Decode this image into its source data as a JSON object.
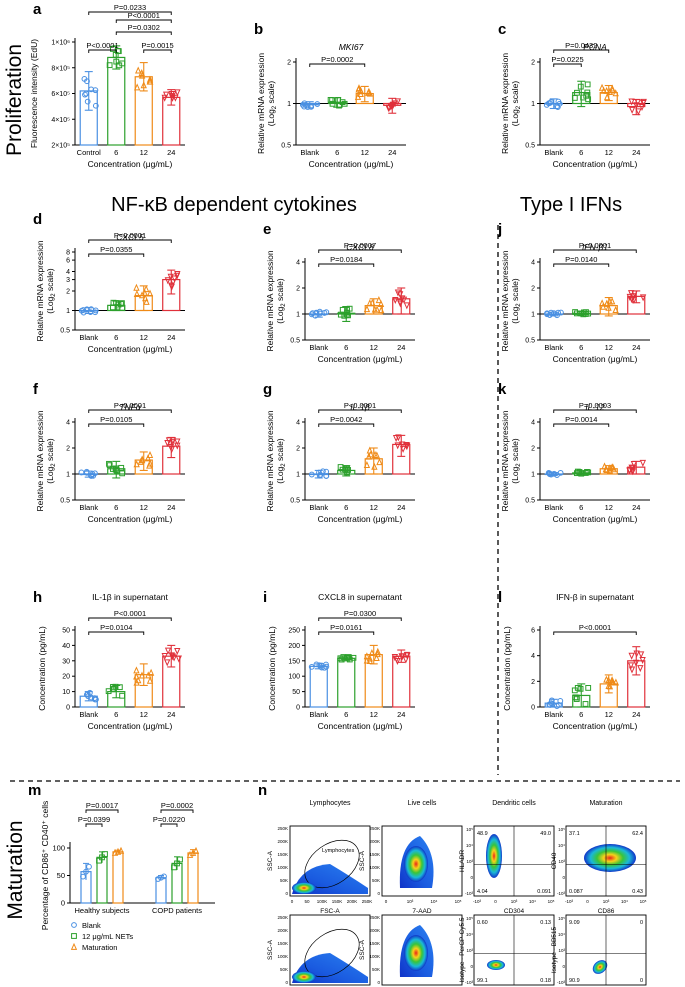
{
  "colors": {
    "blank": "#4a90e2",
    "c6": "#2ca02c",
    "c12": "#ef8a17",
    "c24": "#e0303a",
    "dash": "#000000"
  },
  "sections": {
    "proliferation": "Proliferation",
    "maturation": "Maturation",
    "nfkb": "NF-κB dependent cytokines",
    "ifn": "Type I IFNs"
  },
  "common": {
    "x_categories": [
      "Blank",
      "6",
      "12",
      "24"
    ],
    "x_label": "Concentration (μg/mL)",
    "y_rel_line1": "Relative mRNA expression",
    "y_rel_line2": "(Log",
    "y_rel_sub": "2",
    "y_rel_tail": " scale)"
  },
  "chart_data": [
    {
      "id": "a",
      "type": "bar",
      "title": "",
      "categories": [
        "Control",
        "6",
        "12",
        "24"
      ],
      "values": [
        620000,
        880000,
        730000,
        570000
      ],
      "errors": [
        150000,
        90000,
        110000,
        60000
      ],
      "ylabel": "Fluorescence intensity (EdU)",
      "xlabel": "Concentration (μg/mL)",
      "ylim": [
        200000,
        1000000
      ],
      "yticks": [
        200000,
        400000,
        600000,
        800000,
        1000000
      ],
      "yticklabels": [
        "2×10⁵",
        "4×10⁵",
        "6×10⁵",
        "8×10⁵",
        "1×10⁶"
      ],
      "comparisons": [
        {
          "from": 0,
          "to": 1,
          "label": "P<0.0001"
        },
        {
          "from": 2,
          "to": 3,
          "label": "P=0.0015"
        },
        {
          "from": 1,
          "to": 3,
          "label": "P=0.0302"
        },
        {
          "from": 0,
          "to": 3,
          "label": "P=0.0233"
        },
        {
          "from": 1,
          "to": 3,
          "label": "P<0.0001"
        }
      ]
    },
    {
      "id": "b",
      "type": "bar",
      "title": "MKI67",
      "categories": [
        "Blank",
        "6",
        "12",
        "24"
      ],
      "values": [
        0.98,
        1.02,
        1.18,
        0.97
      ],
      "errors": [
        0.05,
        0.08,
        0.15,
        0.12
      ],
      "ylabel": "Relative mRNA expression (Log2 scale)",
      "xlabel": "Concentration (μg/mL)",
      "ylim": [
        0.5,
        2
      ],
      "yticks": [
        0.5,
        1,
        2
      ],
      "yticklabels": [
        "0.5",
        "1",
        "2"
      ],
      "comparisons": [
        {
          "from": 0,
          "to": 2,
          "label": "P=0.0002"
        }
      ]
    },
    {
      "id": "c",
      "type": "bar",
      "title": "PCNA",
      "categories": [
        "Blank",
        "6",
        "12",
        "24"
      ],
      "values": [
        1.0,
        1.2,
        1.2,
        0.95
      ],
      "errors": [
        0.08,
        0.25,
        0.15,
        0.12
      ],
      "ylabel": "Relative mRNA expression (Log2 scale)",
      "xlabel": "Concentration (μg/mL)",
      "ylim": [
        0.5,
        2
      ],
      "yticks": [
        0.5,
        1,
        2
      ],
      "yticklabels": [
        "0.5",
        "1",
        "2"
      ],
      "comparisons": [
        {
          "from": 0,
          "to": 1,
          "label": "P=0.0225"
        },
        {
          "from": 0,
          "to": 2,
          "label": "P=0.0432"
        }
      ]
    },
    {
      "id": "d",
      "type": "bar",
      "title": "CXCL5",
      "categories": [
        "Blank",
        "6",
        "12",
        "24"
      ],
      "values": [
        1.0,
        1.2,
        1.7,
        3.0
      ],
      "errors": [
        0.1,
        0.2,
        0.7,
        1.2
      ],
      "ylabel": "Relative mRNA expression (Log2 scale)",
      "xlabel": "Concentration (μg/mL)",
      "ylim": [
        0.5,
        8
      ],
      "yticks": [
        0.5,
        1,
        2,
        3,
        4,
        6,
        8
      ],
      "yticklabels": [
        "0.5",
        "1",
        "2",
        "3",
        "4",
        "6",
        "8"
      ],
      "comparisons": [
        {
          "from": 0,
          "to": 2,
          "label": "P=0.0355"
        },
        {
          "from": 0,
          "to": 3,
          "label": "P<0.0001"
        }
      ]
    },
    {
      "id": "e",
      "type": "bar",
      "title": "CXCL8",
      "categories": [
        "Blank",
        "6",
        "12",
        "24"
      ],
      "values": [
        1.0,
        1.02,
        1.25,
        1.5
      ],
      "errors": [
        0.08,
        0.2,
        0.25,
        0.5
      ],
      "ylabel": "Relative mRNA expression (Log2 scale)",
      "xlabel": "Concentration (μg/mL)",
      "ylim": [
        0.5,
        4
      ],
      "yticks": [
        0.5,
        1,
        2,
        4
      ],
      "yticklabels": [
        "0.5",
        "1",
        "2",
        "4"
      ],
      "comparisons": [
        {
          "from": 0,
          "to": 2,
          "label": "P=0.0184"
        },
        {
          "from": 0,
          "to": 3,
          "label": "P=0.0007"
        }
      ]
    },
    {
      "id": "j",
      "type": "bar",
      "title": "IFN-β1",
      "categories": [
        "Blank",
        "6",
        "12",
        "24"
      ],
      "values": [
        1.0,
        1.02,
        1.25,
        1.6
      ],
      "errors": [
        0.05,
        0.05,
        0.3,
        0.25
      ],
      "ylabel": "Relative mRNA expression (Log2 scale)",
      "xlabel": "Concentration (μg/mL)",
      "ylim": [
        0.5,
        4
      ],
      "yticks": [
        0.5,
        1,
        2,
        4
      ],
      "yticklabels": [
        "0.5",
        "1",
        "2",
        "4"
      ],
      "comparisons": [
        {
          "from": 0,
          "to": 2,
          "label": "P=0.0140"
        },
        {
          "from": 0,
          "to": 3,
          "label": "P<0.0001"
        }
      ]
    },
    {
      "id": "f",
      "type": "bar",
      "title": "TNFα",
      "categories": [
        "Blank",
        "6",
        "12",
        "24"
      ],
      "values": [
        1.0,
        1.15,
        1.45,
        2.1
      ],
      "errors": [
        0.08,
        0.25,
        0.35,
        0.55
      ],
      "ylabel": "Relative mRNA expression (Log2 scale)",
      "xlabel": "Concentration (μg/mL)",
      "ylim": [
        0.5,
        4
      ],
      "yticks": [
        0.5,
        1,
        2,
        4
      ],
      "yticklabels": [
        "0.5",
        "1",
        "2",
        "4"
      ],
      "comparisons": [
        {
          "from": 0,
          "to": 2,
          "label": "P=0.0105"
        },
        {
          "from": 0,
          "to": 3,
          "label": "P<0.0001"
        }
      ]
    },
    {
      "id": "g",
      "type": "bar",
      "title": "IL-1β",
      "categories": [
        "Blank",
        "6",
        "12",
        "24"
      ],
      "values": [
        1.0,
        1.1,
        1.5,
        2.2
      ],
      "errors": [
        0.1,
        0.15,
        0.5,
        0.6
      ],
      "ylabel": "Relative mRNA expression (Log2 scale)",
      "xlabel": "Concentration (μg/mL)",
      "ylim": [
        0.5,
        4
      ],
      "yticks": [
        0.5,
        1,
        2,
        4
      ],
      "yticklabels": [
        "0.5",
        "1",
        "2",
        "4"
      ],
      "comparisons": [
        {
          "from": 0,
          "to": 2,
          "label": "P=0.0042"
        },
        {
          "from": 0,
          "to": 3,
          "label": "P<0.0001"
        }
      ]
    },
    {
      "id": "k",
      "type": "bar",
      "title": "IL-12",
      "categories": [
        "Blank",
        "6",
        "12",
        "24"
      ],
      "values": [
        1.0,
        1.03,
        1.15,
        1.2
      ],
      "errors": [
        0.04,
        0.06,
        0.1,
        0.2
      ],
      "ylabel": "Relative mRNA expression (Log2 scale)",
      "xlabel": "Concentration (μg/mL)",
      "ylim": [
        0.5,
        4
      ],
      "yticks": [
        0.5,
        1,
        2,
        4
      ],
      "yticklabels": [
        "0.5",
        "1",
        "2",
        "4"
      ],
      "comparisons": [
        {
          "from": 0,
          "to": 2,
          "label": "P=0.0014"
        },
        {
          "from": 0,
          "to": 3,
          "label": "P=0.0003"
        }
      ]
    },
    {
      "id": "h",
      "type": "bar",
      "title": "IL-1β in supernatant",
      "categories": [
        "Blank",
        "6",
        "12",
        "24"
      ],
      "values": [
        7,
        10,
        21,
        33
      ],
      "errors": [
        3,
        4,
        7,
        7
      ],
      "ylabel": "Concentration (pg/mL)",
      "xlabel": "Concentration (μg/mL)",
      "ylim": [
        0,
        50
      ],
      "yticks": [
        0,
        10,
        20,
        30,
        40,
        50
      ],
      "yticklabels": [
        "0",
        "10",
        "20",
        "30",
        "40",
        "50"
      ],
      "comparisons": [
        {
          "from": 0,
          "to": 2,
          "label": "P=0.0104"
        },
        {
          "from": 0,
          "to": 3,
          "label": "P<0.0001"
        }
      ]
    },
    {
      "id": "i",
      "type": "bar",
      "title": "CXCL8 in supernatant",
      "categories": [
        "Blank",
        "6",
        "12",
        "24"
      ],
      "values": [
        132,
        158,
        170,
        165
      ],
      "errors": [
        8,
        8,
        30,
        20
      ],
      "ylabel": "Concentration (pg/mL)",
      "xlabel": "Concentration (μg/mL)",
      "ylim": [
        0,
        250
      ],
      "yticks": [
        0,
        50,
        100,
        150,
        200,
        250
      ],
      "yticklabels": [
        "0",
        "50",
        "100",
        "150",
        "200",
        "250"
      ],
      "comparisons": [
        {
          "from": 0,
          "to": 2,
          "label": "P=0.0161"
        },
        {
          "from": 0,
          "to": 3,
          "label": "P=0.0300"
        }
      ]
    },
    {
      "id": "l",
      "type": "bar",
      "title": "IFN-β in supernatant",
      "categories": [
        "Blank",
        "6",
        "12",
        "24"
      ],
      "values": [
        0.3,
        0.9,
        1.8,
        3.6
      ],
      "errors": [
        0.3,
        0.9,
        0.7,
        1.1
      ],
      "ylabel": "Concentration (pg/mL)",
      "xlabel": "Concentration (μg/mL)",
      "ylim": [
        0,
        6
      ],
      "yticks": [
        0,
        2,
        4,
        6
      ],
      "yticklabels": [
        "0",
        "2",
        "4",
        "6"
      ],
      "comparisons": [
        {
          "from": 0,
          "to": 3,
          "label": "P<0.0001"
        }
      ]
    },
    {
      "id": "m",
      "type": "bar",
      "title": "",
      "groups": [
        "Healthy subjects",
        "COPD patients"
      ],
      "series": [
        {
          "name": "Blank",
          "values": [
            57,
            46
          ]
        },
        {
          "name": "12 μg/mL NETs",
          "values": [
            83,
            72
          ]
        },
        {
          "name": "Maturation",
          "values": [
            93,
            91
          ]
        }
      ],
      "errors": [
        [
          15,
          4
        ],
        [
          10,
          12
        ],
        [
          3,
          6
        ]
      ],
      "ylabel": "Percentage of CD86⁺ CD40⁺ cells",
      "ylim": [
        0,
        100
      ],
      "yticks": [
        0,
        50,
        100
      ],
      "yticklabels": [
        "0",
        "50",
        "100"
      ],
      "comparisons": [
        {
          "group": 0,
          "from": 0,
          "to": 1,
          "label": "P=0.0399"
        },
        {
          "group": 0,
          "from": 0,
          "to": 2,
          "label": "P=0.0017"
        },
        {
          "group": 1,
          "from": 0,
          "to": 1,
          "label": "P=0.0220"
        },
        {
          "group": 1,
          "from": 0,
          "to": 2,
          "label": "P=0.0002"
        }
      ]
    }
  ],
  "flow": {
    "titles": [
      "Lymphocytes",
      "Live cells",
      "Dendritic cells",
      "Maturation"
    ],
    "gate_label": "Lymphocytes",
    "row1": [
      {
        "ylabel": "SSC-A",
        "xlabel": "FSC-A"
      },
      {
        "ylabel": "SSC-A",
        "xlabel": "7-AAD"
      },
      {
        "ylabel": "HLADR",
        "xlabel": "CD304",
        "q": [
          "48.9",
          "49.0",
          "4.04",
          "0.091"
        ]
      },
      {
        "ylabel": "CD40",
        "xlabel": "CD86",
        "q": [
          "37.1",
          "62.4",
          "0.087",
          "0.43"
        ]
      }
    ],
    "row2": [
      {
        "ylabel": "SSC-A",
        "xlabel": "FSC-A"
      },
      {
        "ylabel": "SSC-A",
        "xlabel": "7-AAD"
      },
      {
        "ylabel": "Isotype - PerCP-Cy5.5",
        "xlabel": "Isotype - Alexa Fluor 647",
        "q": [
          "0.60",
          "0.13",
          "99.1",
          "0.18"
        ]
      },
      {
        "ylabel": "Isotype - BB515",
        "xlabel": "Isotype - PE",
        "q": [
          "9.09",
          "0",
          "90.9",
          "0"
        ]
      }
    ],
    "scatter_yticks": [
      "250K",
      "200K",
      "150K",
      "100K",
      "50K",
      "0"
    ],
    "scatter_xticks": [
      "0",
      "50",
      "100K",
      "150K",
      "200K",
      "250K"
    ],
    "aad_xticks": [
      "0",
      "10³",
      "10⁴",
      "10⁵"
    ],
    "log_xticks": [
      "-10³",
      "0",
      "10³",
      "10⁴",
      "10⁵"
    ],
    "log_yticks": [
      "10⁵",
      "10⁴",
      "10³",
      "0",
      "-10³"
    ]
  }
}
